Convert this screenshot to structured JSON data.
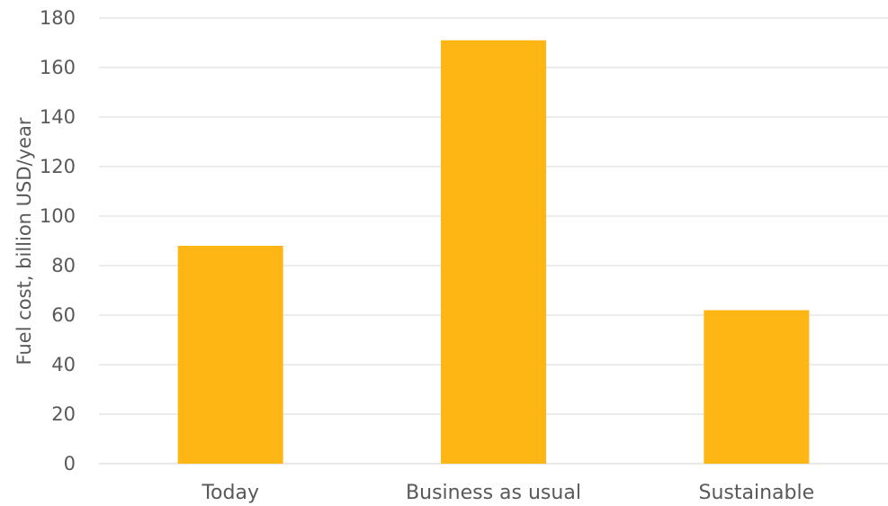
{
  "chart_data": {
    "type": "bar",
    "title": "",
    "xlabel": "",
    "ylabel": "Fuel cost, billion USD/year",
    "categories": [
      "Today",
      "Business as usual",
      "Sustainable"
    ],
    "values": [
      88,
      171,
      62
    ],
    "ylim": [
      0,
      180
    ],
    "yticks": [
      "0",
      "20",
      "40",
      "60",
      "80",
      "100",
      "120",
      "140",
      "160",
      "180"
    ],
    "grid": true,
    "legend": "none",
    "bar_color": "#FDB614",
    "grid_color": "#D9D9D9",
    "text_color": "#595959"
  }
}
